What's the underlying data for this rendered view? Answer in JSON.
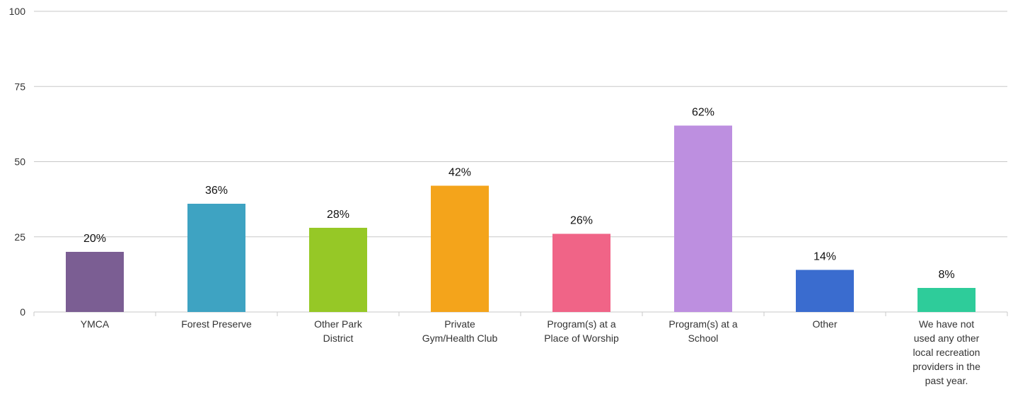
{
  "chart_data": {
    "type": "bar",
    "categories": [
      "YMCA",
      "Forest Preserve",
      "Other Park\nDistrict",
      "Private\nGym/Health Club",
      "Program(s) at a\nPlace of Worship",
      "Program(s) at a\nSchool",
      "Other",
      "We have not\nused any other\nlocal recreation\nproviders in the\npast year."
    ],
    "values": [
      20,
      36,
      28,
      42,
      26,
      62,
      14,
      8
    ],
    "value_labels": [
      "20%",
      "36%",
      "28%",
      "42%",
      "26%",
      "62%",
      "14%",
      "8%"
    ],
    "colors": [
      "#7b5e93",
      "#3ea3c2",
      "#96c826",
      "#f4a41b",
      "#f06487",
      "#bd8fe0",
      "#3a6ccf",
      "#2ecc9a"
    ],
    "ylim": [
      0,
      100
    ],
    "yticks": [
      0,
      25,
      50,
      75,
      100
    ],
    "grid": true
  }
}
